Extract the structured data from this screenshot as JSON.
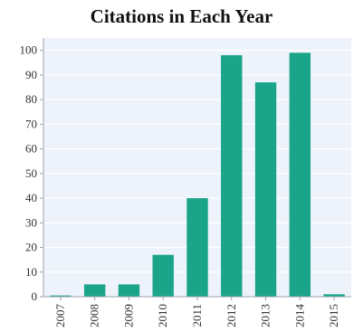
{
  "chart_data": {
    "type": "bar",
    "title": "Citations in Each Year",
    "xlabel": "",
    "ylabel": "",
    "categories": [
      "2007",
      "2008",
      "2009",
      "2010",
      "2011",
      "2012",
      "2013",
      "2014",
      "2015"
    ],
    "values": [
      0.5,
      5,
      5,
      17,
      40,
      98,
      87,
      99,
      1
    ],
    "ylim": [
      0,
      105
    ],
    "yticks": [
      0,
      10,
      20,
      30,
      40,
      50,
      60,
      70,
      80,
      90,
      100
    ],
    "grid": true,
    "colors": {
      "bar": "#1aa58a",
      "plot_background": "#eef3fb",
      "gridline": "#ffffff",
      "axis": "#9aa3ad"
    }
  }
}
